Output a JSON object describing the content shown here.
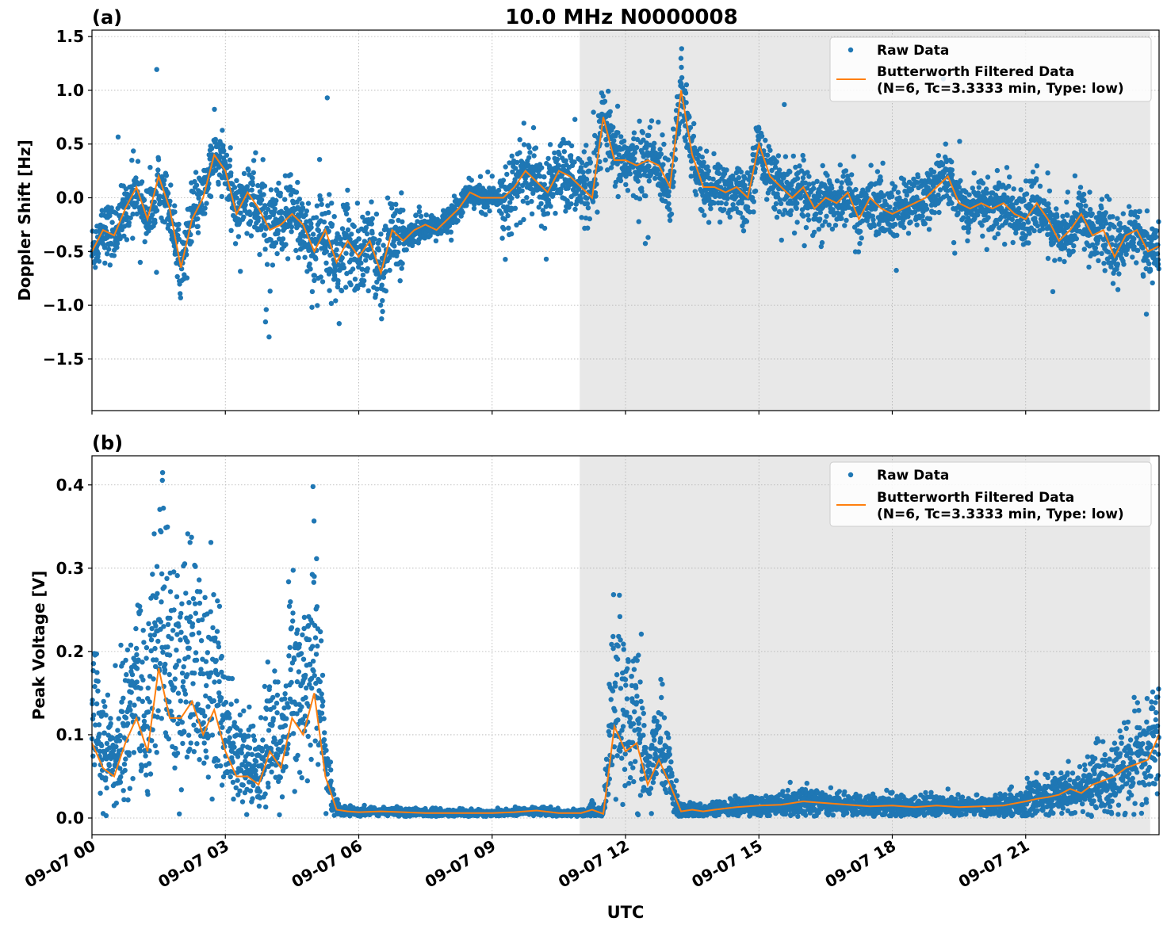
{
  "figure": {
    "title": "10.0 MHz N0000008",
    "xlabel": "UTC"
  },
  "chart_data": [
    {
      "type": "scatter",
      "panel_label": "(a)",
      "ylabel": "Doppler Shift [Hz]",
      "xlim_hours": [
        0,
        24
      ],
      "ylim": [
        -1.98,
        1.56
      ],
      "yticks": [
        1.5,
        1.0,
        0.5,
        0.0,
        -0.5,
        -1.0,
        -1.5
      ],
      "ytick_labels": [
        "1.5",
        "1.0",
        "0.5",
        "0.0",
        "−0.5",
        "−1.0",
        "−1.5"
      ],
      "xticks_hours": [
        0,
        3,
        6,
        9,
        12,
        15,
        18,
        21
      ],
      "grid": true,
      "shaded_region_hours": [
        10.97,
        23.8
      ],
      "legend_position": "top-right",
      "series": [
        {
          "name": "Raw Data",
          "kind": "scatter",
          "color": "#1f77b4"
        },
        {
          "name": "Butterworth Filtered Data",
          "name_line2": "(N=6, Tc=3.3333 min, Type: low)",
          "kind": "line",
          "color": "#ff7f0e"
        }
      ],
      "filtered_hours": [
        0,
        0.25,
        0.5,
        0.75,
        1,
        1.25,
        1.5,
        1.75,
        2,
        2.25,
        2.5,
        2.75,
        3,
        3.25,
        3.5,
        3.75,
        4,
        4.25,
        4.5,
        4.75,
        5,
        5.25,
        5.5,
        5.75,
        6,
        6.25,
        6.5,
        6.75,
        7,
        7.25,
        7.5,
        7.75,
        8,
        8.25,
        8.5,
        8.75,
        9,
        9.25,
        9.5,
        9.75,
        10,
        10.25,
        10.5,
        10.75,
        11,
        11.25,
        11.5,
        11.75,
        12,
        12.25,
        12.5,
        12.75,
        13,
        13.25,
        13.5,
        13.75,
        14,
        14.25,
        14.5,
        14.75,
        15,
        15.25,
        15.5,
        15.75,
        16,
        16.25,
        16.5,
        16.75,
        17,
        17.25,
        17.5,
        17.75,
        18,
        18.25,
        18.5,
        18.75,
        19,
        19.25,
        19.5,
        19.75,
        20,
        20.25,
        20.5,
        20.75,
        21,
        21.25,
        21.5,
        21.75,
        22,
        22.25,
        22.5,
        22.75,
        23,
        23.25,
        23.5,
        23.75,
        24
      ],
      "filtered_values": [
        -0.5,
        -0.3,
        -0.35,
        -0.1,
        0.1,
        -0.2,
        0.2,
        -0.1,
        -0.65,
        -0.2,
        0.0,
        0.4,
        0.25,
        -0.15,
        0.05,
        -0.1,
        -0.3,
        -0.25,
        -0.15,
        -0.25,
        -0.5,
        -0.3,
        -0.6,
        -0.4,
        -0.55,
        -0.4,
        -0.7,
        -0.3,
        -0.4,
        -0.3,
        -0.25,
        -0.3,
        -0.2,
        -0.1,
        0.05,
        0.0,
        0.0,
        0.0,
        0.1,
        0.25,
        0.15,
        0.05,
        0.25,
        0.2,
        0.1,
        0.0,
        0.75,
        0.35,
        0.35,
        0.3,
        0.35,
        0.3,
        0.1,
        1.0,
        0.4,
        0.1,
        0.1,
        0.05,
        0.1,
        0.0,
        0.5,
        0.2,
        0.1,
        0.0,
        0.1,
        -0.1,
        0.0,
        -0.05,
        0.05,
        -0.2,
        0.0,
        -0.1,
        -0.15,
        -0.1,
        -0.05,
        0.0,
        0.1,
        0.2,
        -0.05,
        -0.1,
        -0.05,
        -0.1,
        -0.05,
        -0.15,
        -0.2,
        -0.05,
        -0.2,
        -0.4,
        -0.3,
        -0.15,
        -0.35,
        -0.3,
        -0.55,
        -0.35,
        -0.3,
        -0.5,
        -0.45
      ]
    },
    {
      "type": "scatter",
      "panel_label": "(b)",
      "ylabel": "Peak Voltage [V]",
      "xlim_hours": [
        0,
        24
      ],
      "ylim": [
        -0.02,
        0.435
      ],
      "yticks": [
        0.4,
        0.3,
        0.2,
        0.1,
        0.0
      ],
      "ytick_labels": [
        "0.4",
        "0.3",
        "0.2",
        "0.1",
        "0.0"
      ],
      "xticks_hours": [
        0,
        3,
        6,
        9,
        12,
        15,
        18,
        21
      ],
      "xtick_labels": [
        "09-07 00",
        "09-07 03",
        "09-07 06",
        "09-07 09",
        "09-07 12",
        "09-07 15",
        "09-07 18",
        "09-07 21"
      ],
      "grid": true,
      "shaded_region_hours": [
        10.97,
        23.8
      ],
      "legend_position": "top-right",
      "series": [
        {
          "name": "Raw Data",
          "kind": "scatter",
          "color": "#1f77b4"
        },
        {
          "name": "Butterworth Filtered Data",
          "name_line2": "(N=6, Tc=3.3333 min, Type: low)",
          "kind": "line",
          "color": "#ff7f0e"
        }
      ],
      "filtered_hours": [
        0,
        0.25,
        0.5,
        0.75,
        1,
        1.25,
        1.5,
        1.75,
        2,
        2.25,
        2.5,
        2.75,
        3,
        3.25,
        3.5,
        3.75,
        4,
        4.25,
        4.5,
        4.75,
        5,
        5.25,
        5.5,
        5.75,
        6,
        6.5,
        7,
        7.5,
        8,
        8.5,
        9,
        9.5,
        10,
        10.5,
        11,
        11.25,
        11.5,
        11.75,
        12,
        12.25,
        12.5,
        12.75,
        13,
        13.25,
        13.5,
        13.75,
        14,
        14.5,
        15,
        15.5,
        16,
        16.5,
        17,
        17.5,
        18,
        18.5,
        19,
        19.5,
        20,
        20.5,
        21,
        21.25,
        21.5,
        21.75,
        22,
        22.25,
        22.5,
        22.75,
        23,
        23.25,
        23.5,
        23.75,
        24
      ],
      "filtered_values": [
        0.09,
        0.06,
        0.05,
        0.09,
        0.12,
        0.08,
        0.18,
        0.12,
        0.12,
        0.14,
        0.1,
        0.13,
        0.08,
        0.05,
        0.05,
        0.04,
        0.08,
        0.06,
        0.12,
        0.1,
        0.15,
        0.05,
        0.01,
        0.008,
        0.007,
        0.008,
        0.007,
        0.006,
        0.006,
        0.006,
        0.006,
        0.007,
        0.009,
        0.006,
        0.006,
        0.01,
        0.005,
        0.11,
        0.08,
        0.09,
        0.04,
        0.07,
        0.04,
        0.008,
        0.01,
        0.008,
        0.01,
        0.013,
        0.015,
        0.016,
        0.02,
        0.018,
        0.016,
        0.014,
        0.015,
        0.013,
        0.015,
        0.013,
        0.014,
        0.015,
        0.02,
        0.023,
        0.025,
        0.028,
        0.035,
        0.03,
        0.04,
        0.045,
        0.05,
        0.06,
        0.065,
        0.07,
        0.1
      ]
    }
  ]
}
